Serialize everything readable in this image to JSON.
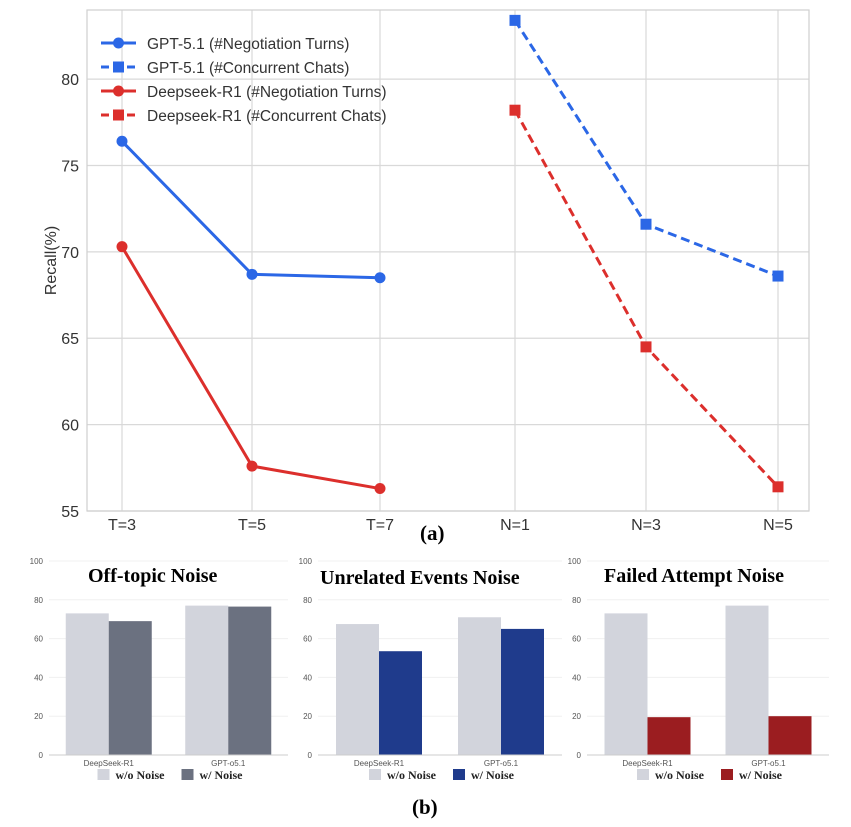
{
  "chart_data": [
    {
      "type": "line",
      "title": "",
      "ylabel": "Recall(%)",
      "xlabel": "",
      "ylim": [
        55,
        84
      ],
      "yticks": [
        55,
        60,
        65,
        70,
        75,
        80
      ],
      "categories": [
        "T=3",
        "T=5",
        "T=7",
        "N=1",
        "N=3",
        "N=5"
      ],
      "legend_position": "top-left",
      "grid": true,
      "series": [
        {
          "name": "GPT-5.1 (#Negotiation Turns)",
          "color": "#2b67e6",
          "style": "solid",
          "marker": "circle",
          "x": [
            "T=3",
            "T=5",
            "T=7"
          ],
          "values": [
            76.4,
            68.7,
            68.5
          ]
        },
        {
          "name": "GPT-5.1 (#Concurrent Chats)",
          "color": "#2b67e6",
          "style": "dashed",
          "marker": "square",
          "x": [
            "N=1",
            "N=3",
            "N=5"
          ],
          "values": [
            83.4,
            71.6,
            68.6
          ]
        },
        {
          "name": "Deepseek-R1 (#Negotiation Turns)",
          "color": "#dc2f2c",
          "style": "solid",
          "marker": "circle",
          "x": [
            "T=3",
            "T=5",
            "T=7"
          ],
          "values": [
            70.3,
            57.6,
            56.3
          ]
        },
        {
          "name": "Deepseek-R1 (#Concurrent Chats)",
          "color": "#dc2f2c",
          "style": "dashed",
          "marker": "square",
          "x": [
            "N=1",
            "N=3",
            "N=5"
          ],
          "values": [
            78.2,
            64.5,
            56.4
          ]
        }
      ],
      "panel_label": "(a)"
    },
    {
      "type": "bar",
      "title": "Off-topic Noise",
      "categories": [
        "DeepSeek-R1",
        "GPT-o5.1"
      ],
      "ylim": [
        0,
        100
      ],
      "yticks": [
        0,
        20,
        40,
        60,
        80,
        100
      ],
      "series": [
        {
          "name": "w/o Noise",
          "color": "#d2d4dc",
          "values": [
            73,
            77
          ]
        },
        {
          "name": "w/ Noise",
          "color": "#6b7180",
          "values": [
            69,
            76.5
          ]
        }
      ]
    },
    {
      "type": "bar",
      "title": "Unrelated Events Noise",
      "categories": [
        "DeepSeek-R1",
        "GPT-o5.1"
      ],
      "ylim": [
        0,
        100
      ],
      "yticks": [
        0,
        20,
        40,
        60,
        80,
        100
      ],
      "series": [
        {
          "name": "w/o Noise",
          "color": "#d2d4dc",
          "values": [
            67.5,
            71
          ]
        },
        {
          "name": "w/ Noise",
          "color": "#1f3b8c",
          "values": [
            53.5,
            65
          ]
        }
      ]
    },
    {
      "type": "bar",
      "title": "Failed Attempt Noise",
      "categories": [
        "DeepSeek-R1",
        "GPT-o5.1"
      ],
      "ylim": [
        0,
        100
      ],
      "yticks": [
        0,
        20,
        40,
        60,
        80,
        100
      ],
      "series": [
        {
          "name": "w/o Noise",
          "color": "#d2d4dc",
          "values": [
            73,
            77
          ]
        },
        {
          "name": "w/ Noise",
          "color": "#9b1d20",
          "values": [
            19.5,
            20
          ]
        }
      ]
    }
  ],
  "panel_b_label": "(b)"
}
